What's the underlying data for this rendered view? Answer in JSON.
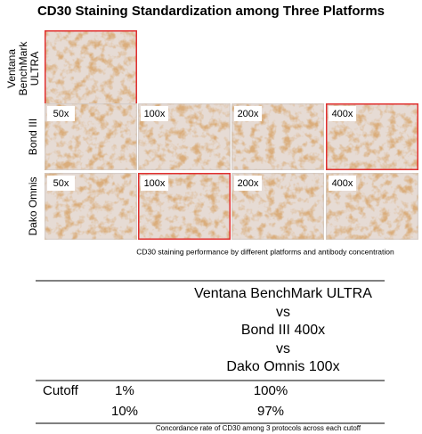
{
  "title": "CD30 Staining Standardization among Three Platforms",
  "platforms": [
    {
      "label": [
        "Ventana",
        "BenchMark",
        "ULTRA"
      ],
      "panels": [
        {
          "highlight": true
        }
      ]
    },
    {
      "label": [
        "Bond III"
      ],
      "panels": [
        {
          "tag": "50x",
          "highlight": false
        },
        {
          "tag": "100x",
          "highlight": false
        },
        {
          "tag": "200x",
          "highlight": false
        },
        {
          "tag": "400x",
          "highlight": true
        }
      ]
    },
    {
      "label": [
        "Dako Omnis"
      ],
      "panels": [
        {
          "tag": "50x",
          "highlight": false
        },
        {
          "tag": "100x",
          "highlight": true
        },
        {
          "tag": "200x",
          "highlight": false
        },
        {
          "tag": "400x",
          "highlight": false
        }
      ]
    }
  ],
  "figure_caption": "CD30 staining performance by different platforms and antibody concentration",
  "table": {
    "header": [
      "Ventana BenchMark ULTRA",
      "vs",
      "Bond III 400x",
      "vs",
      "Dako Omnis 100x"
    ],
    "row_label": "Cutoff",
    "rows": [
      {
        "cutoff": "1%",
        "rate": "100%"
      },
      {
        "cutoff": "10%",
        "rate": "97%"
      }
    ],
    "caption": "Concordance rate of CD30 among 3 protocols across each cutoff"
  }
}
